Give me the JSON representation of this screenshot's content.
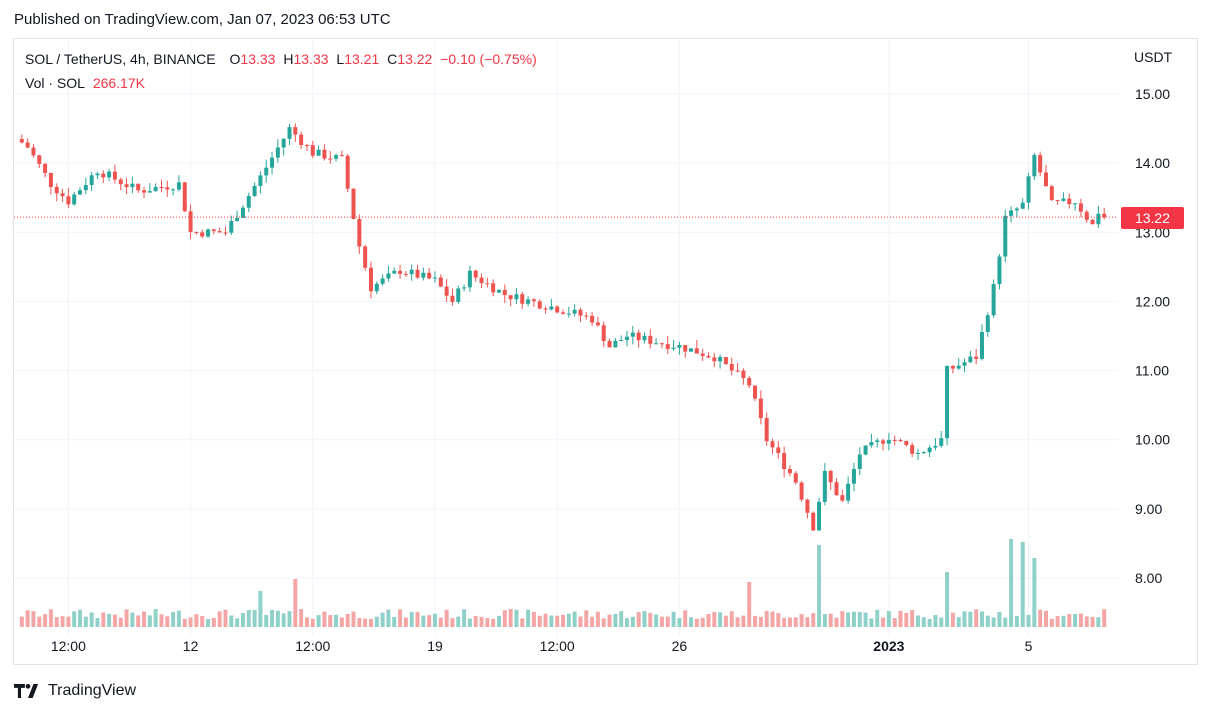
{
  "header": {
    "published": "Published on TradingView.com, Jan 07, 2023 06:53 UTC"
  },
  "legend": {
    "symbol": "SOL / TetherUS, 4h, BINANCE",
    "o_label": "O",
    "o_value": "13.33",
    "h_label": "H",
    "h_value": "13.33",
    "l_label": "L",
    "l_value": "13.21",
    "c_label": "C",
    "c_value": "13.22",
    "change": "−0.10 (−0.75%)",
    "vol_label": "Vol · SOL",
    "vol_value": "266.17K"
  },
  "axis": {
    "unit": "USDT",
    "last_price": "13.22"
  },
  "brand": {
    "name": "TradingView"
  },
  "colors": {
    "up": "#26a69a",
    "down": "#ef5350",
    "up_vol": "#8fd1c8",
    "down_vol": "#f4a6a6",
    "grid": "#f0f3fa",
    "last": "#f23645"
  },
  "chart_data": {
    "type": "candlestick",
    "title": "SOL / TetherUS, 4h, BINANCE",
    "ylabel": "USDT",
    "ylim": [
      7.3,
      15.6
    ],
    "y_ticks": [
      "15.00",
      "14.00",
      "13.00",
      "12.00",
      "11.00",
      "10.00",
      "9.00",
      "8.00"
    ],
    "x_ticks": [
      {
        "label": "12:00",
        "at": "Dec 08 12:00"
      },
      {
        "label": "12",
        "at": "Dec 12"
      },
      {
        "label": "12:00",
        "at": "Dec 15 12:00"
      },
      {
        "label": "19",
        "at": "Dec 19"
      },
      {
        "label": "12:00",
        "at": "Dec 22 12:00"
      },
      {
        "label": "26",
        "at": "Dec 26"
      },
      {
        "label": "2023",
        "at": "Jan 01"
      },
      {
        "label": "5",
        "at": "Jan 05"
      }
    ],
    "grid": true,
    "last_price": 13.22,
    "anchors": [
      {
        "t": "Dec 07 06:00",
        "close": 14.3
      },
      {
        "t": "Dec 08 00:00",
        "close": 13.7
      },
      {
        "t": "Dec 08 12:00",
        "close": 13.45
      },
      {
        "t": "Dec 09 08:00",
        "close": 13.9
      },
      {
        "t": "Dec 10 12:00",
        "close": 13.6
      },
      {
        "t": "Dec 11 16:00",
        "close": 13.7
      },
      {
        "t": "Dec 12 00:00",
        "close": 13.0
      },
      {
        "t": "Dec 13 00:00",
        "close": 13.0
      },
      {
        "t": "Dec 14 00:00",
        "close": 13.8
      },
      {
        "t": "Dec 14 20:00",
        "close": 14.5
      },
      {
        "t": "Dec 15 12:00",
        "close": 14.15
      },
      {
        "t": "Dec 16 08:00",
        "close": 14.05
      },
      {
        "t": "Dec 16 20:00",
        "close": 12.8
      },
      {
        "t": "Dec 17 04:00",
        "close": 12.2
      },
      {
        "t": "Dec 18 00:00",
        "close": 12.45
      },
      {
        "t": "Dec 19 00:00",
        "close": 12.3
      },
      {
        "t": "Dec 19 12:00",
        "close": 12.0
      },
      {
        "t": "Dec 20 00:00",
        "close": 12.4
      },
      {
        "t": "Dec 21 00:00",
        "close": 12.1
      },
      {
        "t": "Dec 22 12:00",
        "close": 11.9
      },
      {
        "t": "Dec 23 12:00",
        "close": 11.75
      },
      {
        "t": "Dec 24 00:00",
        "close": 11.35
      },
      {
        "t": "Dec 24 12:00",
        "close": 11.5
      },
      {
        "t": "Dec 26 00:00",
        "close": 11.35
      },
      {
        "t": "Dec 27 00:00",
        "close": 11.2
      },
      {
        "t": "Dec 28 00:00",
        "close": 10.8
      },
      {
        "t": "Dec 28 12:00",
        "close": 10.0
      },
      {
        "t": "Dec 29 08:00",
        "close": 9.4
      },
      {
        "t": "Dec 29 20:00",
        "close": 8.75
      },
      {
        "t": "Dec 30 04:00",
        "close": 9.5
      },
      {
        "t": "Dec 30 16:00",
        "close": 9.1
      },
      {
        "t": "Dec 31 04:00",
        "close": 9.8
      },
      {
        "t": "Jan 01 00:00",
        "close": 10.05
      },
      {
        "t": "Jan 01 20:00",
        "close": 9.8
      },
      {
        "t": "Jan 02 12:00",
        "close": 10.0
      },
      {
        "t": "Jan 02 16:00",
        "close": 11.0
      },
      {
        "t": "Jan 03 12:00",
        "close": 11.2
      },
      {
        "t": "Jan 04 00:00",
        "close": 12.2
      },
      {
        "t": "Jan 04 08:00",
        "close": 13.2
      },
      {
        "t": "Jan 04 20:00",
        "close": 13.4
      },
      {
        "t": "Jan 05 04:00",
        "close": 14.1
      },
      {
        "t": "Jan 05 16:00",
        "close": 13.4
      },
      {
        "t": "Jan 06 08:00",
        "close": 13.45
      },
      {
        "t": "Jan 06 20:00",
        "close": 13.1
      },
      {
        "t": "Jan 07 04:00",
        "close": 13.5
      },
      {
        "t": "Jan 07 04:00",
        "close": 13.22
      }
    ],
    "volume_spikes": [
      {
        "t": "Dec 14 00:00",
        "direction": "up",
        "relative": 0.36
      },
      {
        "t": "Dec 15 00:00",
        "direction": "down",
        "relative": 0.48
      },
      {
        "t": "Dec 28 00:00",
        "direction": "down",
        "relative": 0.45
      },
      {
        "t": "Dec 30 00:00",
        "direction": "down",
        "relative": 0.82
      },
      {
        "t": "Jan 02 16:00",
        "direction": "up",
        "relative": 0.55
      },
      {
        "t": "Jan 04 12:00",
        "direction": "up",
        "relative": 0.88
      },
      {
        "t": "Jan 04 20:00",
        "direction": "down",
        "relative": 0.85
      },
      {
        "t": "Jan 05 04:00",
        "direction": "up",
        "relative": 0.69
      }
    ]
  }
}
